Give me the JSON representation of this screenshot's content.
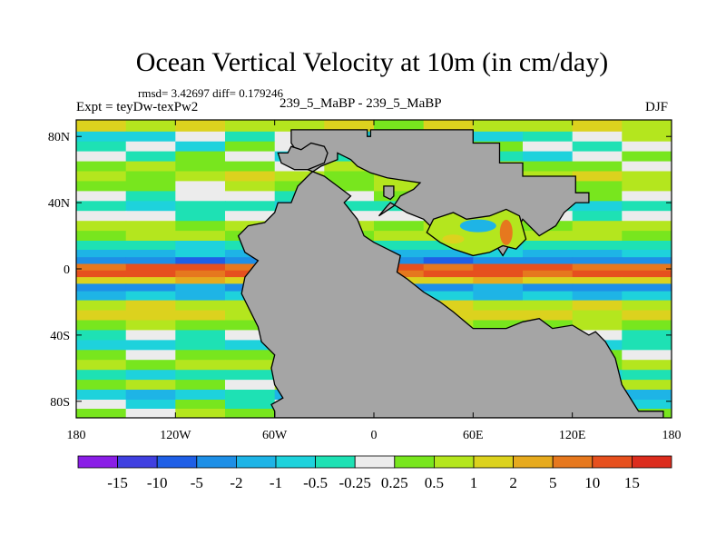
{
  "chart_data": {
    "type": "heatmap",
    "title": "Ocean Vertical Velocity at 10m (in cm/day)",
    "stats_text": "rmsd= 3.42697 diff= 0.179246",
    "experiment_text": "Expt = teyDw-texPw2",
    "center_label": "239_5_MaBP - 239_5_MaBP",
    "season": "DJF",
    "xlim": [
      -180,
      180
    ],
    "ylim": [
      -90,
      90
    ],
    "x_ticks": [
      {
        "value": -180,
        "label": "180"
      },
      {
        "value": -120,
        "label": "120W"
      },
      {
        "value": -60,
        "label": "60W"
      },
      {
        "value": 0,
        "label": "0"
      },
      {
        "value": 60,
        "label": "60E"
      },
      {
        "value": 120,
        "label": "120E"
      },
      {
        "value": 180,
        "label": "180"
      }
    ],
    "y_ticks": [
      {
        "value": 80,
        "label": "80N"
      },
      {
        "value": 40,
        "label": "40N"
      },
      {
        "value": 0,
        "label": "0"
      },
      {
        "value": -40,
        "label": "40S"
      },
      {
        "value": -80,
        "label": "80S"
      }
    ],
    "colorbar": {
      "labels": [
        "-15",
        "-10",
        "-5",
        "-2",
        "-1",
        "-0.5",
        "-0.25",
        "0.25",
        "0.5",
        "1",
        "2",
        "5",
        "10",
        "15"
      ],
      "colors": [
        "#8a1ee6",
        "#4040e0",
        "#1f5fe6",
        "#1e8fe6",
        "#1eb4e6",
        "#1ed2dc",
        "#1ee1b4",
        "#ececec",
        "#78e61e",
        "#b4e61e",
        "#dcd21e",
        "#e6aa1e",
        "#e6781e",
        "#e6501e",
        "#dc2d1e"
      ]
    },
    "land_color": "#a5a5a5",
    "land_outline": [
      [
        -50,
        84
      ],
      [
        -4,
        84
      ],
      [
        -4,
        80
      ],
      [
        -2,
        80
      ],
      [
        -2,
        84
      ],
      [
        60,
        84
      ],
      [
        60,
        76
      ],
      [
        76,
        76
      ],
      [
        76,
        64
      ],
      [
        90,
        64
      ],
      [
        90,
        56
      ],
      [
        122,
        56
      ],
      [
        122,
        46
      ],
      [
        130,
        46
      ],
      [
        130,
        40
      ],
      [
        122,
        40
      ],
      [
        115,
        34
      ],
      [
        110,
        26
      ],
      [
        100,
        20
      ],
      [
        90,
        30
      ],
      [
        84,
        18
      ],
      [
        78,
        8
      ],
      [
        70,
        20
      ],
      [
        60,
        26
      ],
      [
        40,
        20
      ],
      [
        30,
        30
      ],
      [
        20,
        34
      ],
      [
        10,
        40
      ],
      [
        8,
        38
      ],
      [
        3,
        32
      ],
      [
        12,
        38
      ],
      [
        16,
        44
      ],
      [
        24,
        48
      ],
      [
        28,
        52
      ],
      [
        8,
        55
      ],
      [
        -2,
        58
      ],
      [
        -10,
        62
      ],
      [
        -14,
        66
      ],
      [
        -22,
        70
      ],
      [
        -22,
        66
      ],
      [
        -32,
        62
      ],
      [
        -38,
        58
      ],
      [
        -46,
        50
      ],
      [
        -50,
        40
      ],
      [
        -58,
        40
      ],
      [
        -60,
        34
      ],
      [
        -66,
        28
      ],
      [
        -76,
        26
      ],
      [
        -82,
        20
      ],
      [
        -78,
        10
      ],
      [
        -70,
        5
      ],
      [
        -78,
        -5
      ],
      [
        -80,
        -15
      ],
      [
        -75,
        -25
      ],
      [
        -70,
        -35
      ],
      [
        -68,
        -44
      ],
      [
        -60,
        -52
      ],
      [
        -62,
        -60
      ],
      [
        -60,
        -70
      ],
      [
        -55,
        -78
      ],
      [
        -62,
        -82
      ],
      [
        -60,
        -86
      ],
      [
        -60,
        -90
      ],
      [
        175,
        -90
      ],
      [
        175,
        -86
      ],
      [
        160,
        -86
      ],
      [
        150,
        -70
      ],
      [
        146,
        -54
      ],
      [
        140,
        -44
      ],
      [
        134,
        -38
      ],
      [
        130,
        -40
      ],
      [
        120,
        -34
      ],
      [
        108,
        -36
      ],
      [
        100,
        -30
      ],
      [
        90,
        -32
      ],
      [
        80,
        -36
      ],
      [
        60,
        -36
      ],
      [
        48,
        -26
      ],
      [
        40,
        -20
      ],
      [
        30,
        -14
      ],
      [
        20,
        -6
      ],
      [
        14,
        -2
      ],
      [
        16,
        8
      ],
      [
        8,
        12
      ],
      [
        0,
        16
      ],
      [
        -6,
        20
      ],
      [
        -10,
        30
      ],
      [
        -18,
        40
      ],
      [
        -14,
        44
      ],
      [
        -22,
        50
      ],
      [
        -30,
        56
      ],
      [
        -40,
        60
      ],
      [
        -46,
        70
      ],
      [
        -50,
        76
      ]
    ],
    "inland_sea_outline": [
      [
        36,
        30
      ],
      [
        48,
        34
      ],
      [
        56,
        30
      ],
      [
        70,
        32
      ],
      [
        80,
        36
      ],
      [
        88,
        32
      ],
      [
        92,
        18
      ],
      [
        86,
        12
      ],
      [
        78,
        14
      ],
      [
        70,
        10
      ],
      [
        60,
        8
      ],
      [
        48,
        12
      ],
      [
        40,
        16
      ],
      [
        32,
        22
      ]
    ],
    "islands": [
      [
        [
          -58,
          70
        ],
        [
          -52,
          70
        ],
        [
          -50,
          74
        ],
        [
          -44,
          72
        ],
        [
          -38,
          76
        ],
        [
          -30,
          74
        ],
        [
          -28,
          70
        ],
        [
          -30,
          64
        ],
        [
          -40,
          60
        ],
        [
          -48,
          60
        ],
        [
          -56,
          64
        ]
      ],
      [
        [
          6,
          50
        ],
        [
          12,
          50
        ],
        [
          12,
          44
        ],
        [
          10,
          42
        ],
        [
          6,
          44
        ]
      ]
    ],
    "bands": [
      {
        "lat": 86,
        "v": [
          3,
          2,
          3,
          2,
          2,
          3,
          1,
          3,
          2,
          2,
          3,
          2
        ]
      },
      {
        "lat": 80,
        "v": [
          -2,
          -2,
          0,
          -1,
          0,
          -2,
          2,
          0,
          -2,
          -1,
          0,
          2
        ]
      },
      {
        "lat": 74,
        "v": [
          -1,
          0,
          -2,
          1,
          0,
          0,
          0,
          -2,
          1,
          0,
          -1,
          0
        ]
      },
      {
        "lat": 68,
        "v": [
          0,
          -1,
          1,
          0,
          -2,
          -1,
          0,
          1,
          -1,
          -2,
          0,
          1
        ]
      },
      {
        "lat": 62,
        "v": [
          1,
          2,
          1,
          1,
          0,
          2,
          1,
          0,
          2,
          1,
          1,
          0
        ]
      },
      {
        "lat": 56,
        "v": [
          2,
          1,
          2,
          3,
          2,
          1,
          2,
          2,
          1,
          2,
          3,
          2
        ]
      },
      {
        "lat": 50,
        "v": [
          1,
          1,
          0,
          2,
          1,
          1,
          2,
          1,
          0,
          1,
          1,
          2
        ]
      },
      {
        "lat": 44,
        "v": [
          0,
          -1,
          0,
          0,
          -1,
          0,
          1,
          0,
          -1,
          0,
          1,
          0
        ]
      },
      {
        "lat": 38,
        "v": [
          -1,
          -2,
          -1,
          -1,
          -2,
          -1,
          -1,
          -2,
          -1,
          -1,
          -2,
          -1
        ]
      },
      {
        "lat": 32,
        "v": [
          0,
          0,
          -1,
          0,
          0,
          0,
          0,
          -1,
          0,
          0,
          -1,
          0
        ]
      },
      {
        "lat": 26,
        "v": [
          2,
          2,
          1,
          2,
          2,
          2,
          1,
          2,
          2,
          1,
          2,
          2
        ]
      },
      {
        "lat": 20,
        "v": [
          1,
          2,
          2,
          1,
          2,
          1,
          2,
          2,
          1,
          2,
          2,
          1
        ]
      },
      {
        "lat": 14,
        "v": [
          -1,
          -1,
          -2,
          -1,
          -1,
          -2,
          -1,
          -1,
          -2,
          -1,
          -1,
          -1
        ]
      },
      {
        "lat": 9,
        "v": [
          -3,
          -3,
          -2,
          -3,
          -3,
          -2,
          -3,
          -3,
          -2,
          -3,
          -3,
          -2
        ]
      },
      {
        "lat": 5,
        "v": [
          -4,
          -4,
          -5,
          -4,
          -4,
          -3,
          -4,
          -5,
          -4,
          -4,
          -4,
          -4
        ]
      },
      {
        "lat": 1,
        "v": [
          5,
          6,
          6,
          5,
          4,
          5,
          6,
          5,
          6,
          6,
          5,
          5
        ]
      },
      {
        "lat": -3,
        "v": [
          6,
          6,
          5,
          6,
          5,
          6,
          5,
          6,
          6,
          5,
          6,
          6
        ]
      },
      {
        "lat": -7,
        "v": [
          3,
          3,
          4,
          3,
          3,
          4,
          3,
          3,
          4,
          3,
          3,
          3
        ]
      },
      {
        "lat": -11,
        "v": [
          -4,
          -4,
          -3,
          -4,
          -4,
          -3,
          -4,
          -4,
          -3,
          -4,
          -4,
          -4
        ]
      },
      {
        "lat": -16,
        "v": [
          -3,
          -2,
          -3,
          -2,
          -3,
          -2,
          -3,
          -2,
          -3,
          -2,
          -3,
          -2
        ]
      },
      {
        "lat": -22,
        "v": [
          2,
          3,
          2,
          2,
          3,
          2,
          2,
          3,
          2,
          2,
          3,
          2
        ]
      },
      {
        "lat": -28,
        "v": [
          3,
          3,
          3,
          2,
          3,
          3,
          2,
          3,
          3,
          3,
          2,
          3
        ]
      },
      {
        "lat": -34,
        "v": [
          1,
          2,
          1,
          1,
          2,
          1,
          1,
          2,
          1,
          1,
          2,
          1
        ]
      },
      {
        "lat": -40,
        "v": [
          -1,
          0,
          -1,
          0,
          -1,
          -1,
          0,
          -1,
          0,
          -1,
          0,
          -1
        ]
      },
      {
        "lat": -46,
        "v": [
          -2,
          -2,
          -1,
          -2,
          -2,
          -1,
          -2,
          -2,
          -1,
          -2,
          -2,
          -1
        ]
      },
      {
        "lat": -52,
        "v": [
          1,
          0,
          1,
          1,
          0,
          1,
          0,
          1,
          1,
          0,
          1,
          0
        ]
      },
      {
        "lat": -58,
        "v": [
          2,
          1,
          2,
          2,
          1,
          2,
          2,
          1,
          2,
          2,
          1,
          2
        ]
      },
      {
        "lat": -64,
        "v": [
          -1,
          -2,
          -1,
          -1,
          -2,
          -1,
          -1,
          -2,
          -1,
          -1,
          -2,
          -1
        ]
      },
      {
        "lat": -70,
        "v": [
          1,
          2,
          1,
          0,
          2,
          1,
          2,
          1,
          0,
          2,
          1,
          2
        ]
      },
      {
        "lat": -76,
        "v": [
          -2,
          -3,
          -2,
          -1,
          -3,
          -2,
          -1,
          -3,
          -2,
          -1,
          -2,
          -3
        ]
      },
      {
        "lat": -82,
        "v": [
          0,
          -2,
          1,
          -1,
          0,
          -2,
          1,
          0,
          -1,
          1,
          0,
          -2
        ]
      },
      {
        "lat": -87,
        "v": [
          1,
          0,
          2,
          1,
          0,
          1,
          2,
          0,
          1,
          1,
          0,
          1
        ]
      }
    ]
  }
}
